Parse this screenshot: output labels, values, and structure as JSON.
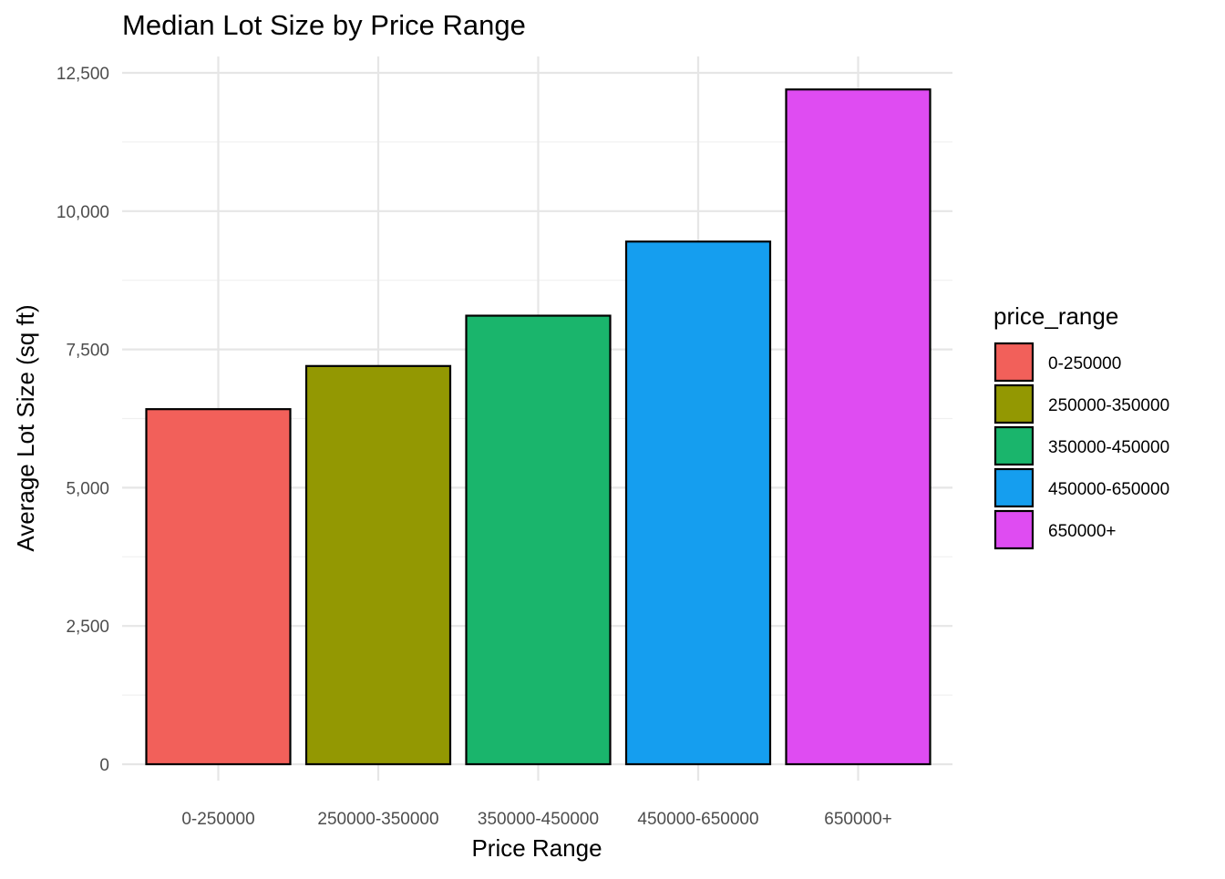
{
  "chart_data": {
    "type": "bar",
    "title": "Median Lot Size by Price Range",
    "xlabel": "Price Range",
    "ylabel": "Average Lot Size (sq ft)",
    "categories": [
      "0-250000",
      "250000-350000",
      "350000-450000",
      "450000-650000",
      "650000+"
    ],
    "values": [
      6420,
      7200,
      8110,
      9450,
      12200
    ],
    "colors": [
      "#F8766D",
      "#A3A500",
      "#00BF7D",
      "#00B0F6",
      "#E76BF3"
    ],
    "fill_colors": [
      "#F2605A",
      "#939802",
      "#1AB56C",
      "#159EEF",
      "#DF4CF2"
    ],
    "ylim": [
      0,
      12800
    ],
    "yticks": [
      0,
      2500,
      5000,
      7500,
      10000,
      12500
    ],
    "ytick_labels": [
      "0",
      "2,500",
      "5,000",
      "7,500",
      "10,000",
      "12,500"
    ],
    "grid": true,
    "legend": {
      "title": "price_range",
      "position": "right",
      "entries": [
        "0-250000",
        "250000-350000",
        "350000-450000",
        "450000-650000",
        "650000+"
      ]
    }
  }
}
